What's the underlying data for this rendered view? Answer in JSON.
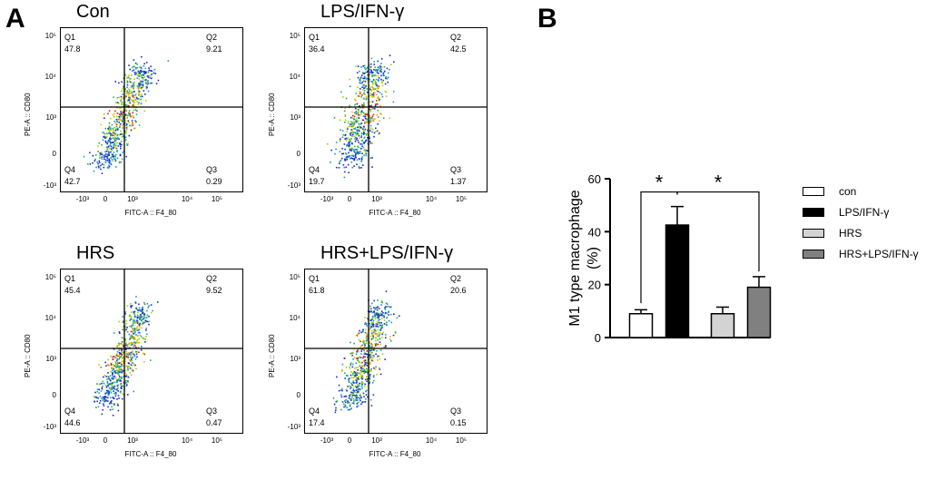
{
  "panel_a": {
    "letter": "A",
    "plots": [
      {
        "title": "Con",
        "q1": "47.8",
        "q2": "9.21",
        "q3": "0.29",
        "q4": "42.7",
        "spread": 0.28,
        "slant": 1.4
      },
      {
        "title": "LPS/IFN-γ",
        "q1": "36.4",
        "q2": "42.5",
        "q3": "1.37",
        "q4": "19.7",
        "spread": 0.55,
        "slant": 1.0
      },
      {
        "title": "HRS",
        "q1": "45.4",
        "q2": "9.52",
        "q3": "0.47",
        "q4": "44.6",
        "spread": 0.28,
        "slant": 1.4
      },
      {
        "title": "HRS+LPS/IFN-γ",
        "q1": "61.8",
        "q2": "20.6",
        "q3": "0.15",
        "q4": "17.4",
        "spread": 0.4,
        "slant": 1.2
      }
    ],
    "quadrant_names": [
      "Q1",
      "Q2",
      "Q3",
      "Q4"
    ],
    "x_axis_label": "FITC-A :: F4_80",
    "y_axis_label": "PE-A :: CD80",
    "x_ticks": [
      "-10³",
      "0",
      "10³",
      "10⁴",
      "10⁵"
    ],
    "y_ticks": [
      "10⁵",
      "10⁴",
      "10³",
      "0",
      "-10³"
    ]
  },
  "panel_b": {
    "letter": "B",
    "legend": [
      {
        "label": "con",
        "color": "#ffffff"
      },
      {
        "label": "LPS/IFN-γ",
        "color": "#000000"
      },
      {
        "label": "HRS",
        "color": "#d3d3d3"
      },
      {
        "label": "HRS+LPS/IFN-γ",
        "color": "#808080"
      }
    ]
  },
  "chart_data": {
    "type": "bar",
    "title": "",
    "xlabel": "",
    "ylabel": "M1 type macrophage (%)",
    "ylim": [
      0,
      60
    ],
    "y_ticks": [
      0,
      20,
      40,
      60
    ],
    "categories": [
      "con",
      "LPS/IFN-γ",
      "HRS",
      "HRS+LPS/IFN-γ"
    ],
    "values": [
      9,
      42.5,
      9,
      19
    ],
    "errors": [
      1.5,
      7,
      2.5,
      4
    ],
    "colors": [
      "#ffffff",
      "#000000",
      "#d3d3d3",
      "#808080"
    ],
    "significance": [
      {
        "from": 0,
        "to": 1,
        "label": "*"
      },
      {
        "from": 1,
        "to": 3,
        "label": "*"
      }
    ]
  }
}
